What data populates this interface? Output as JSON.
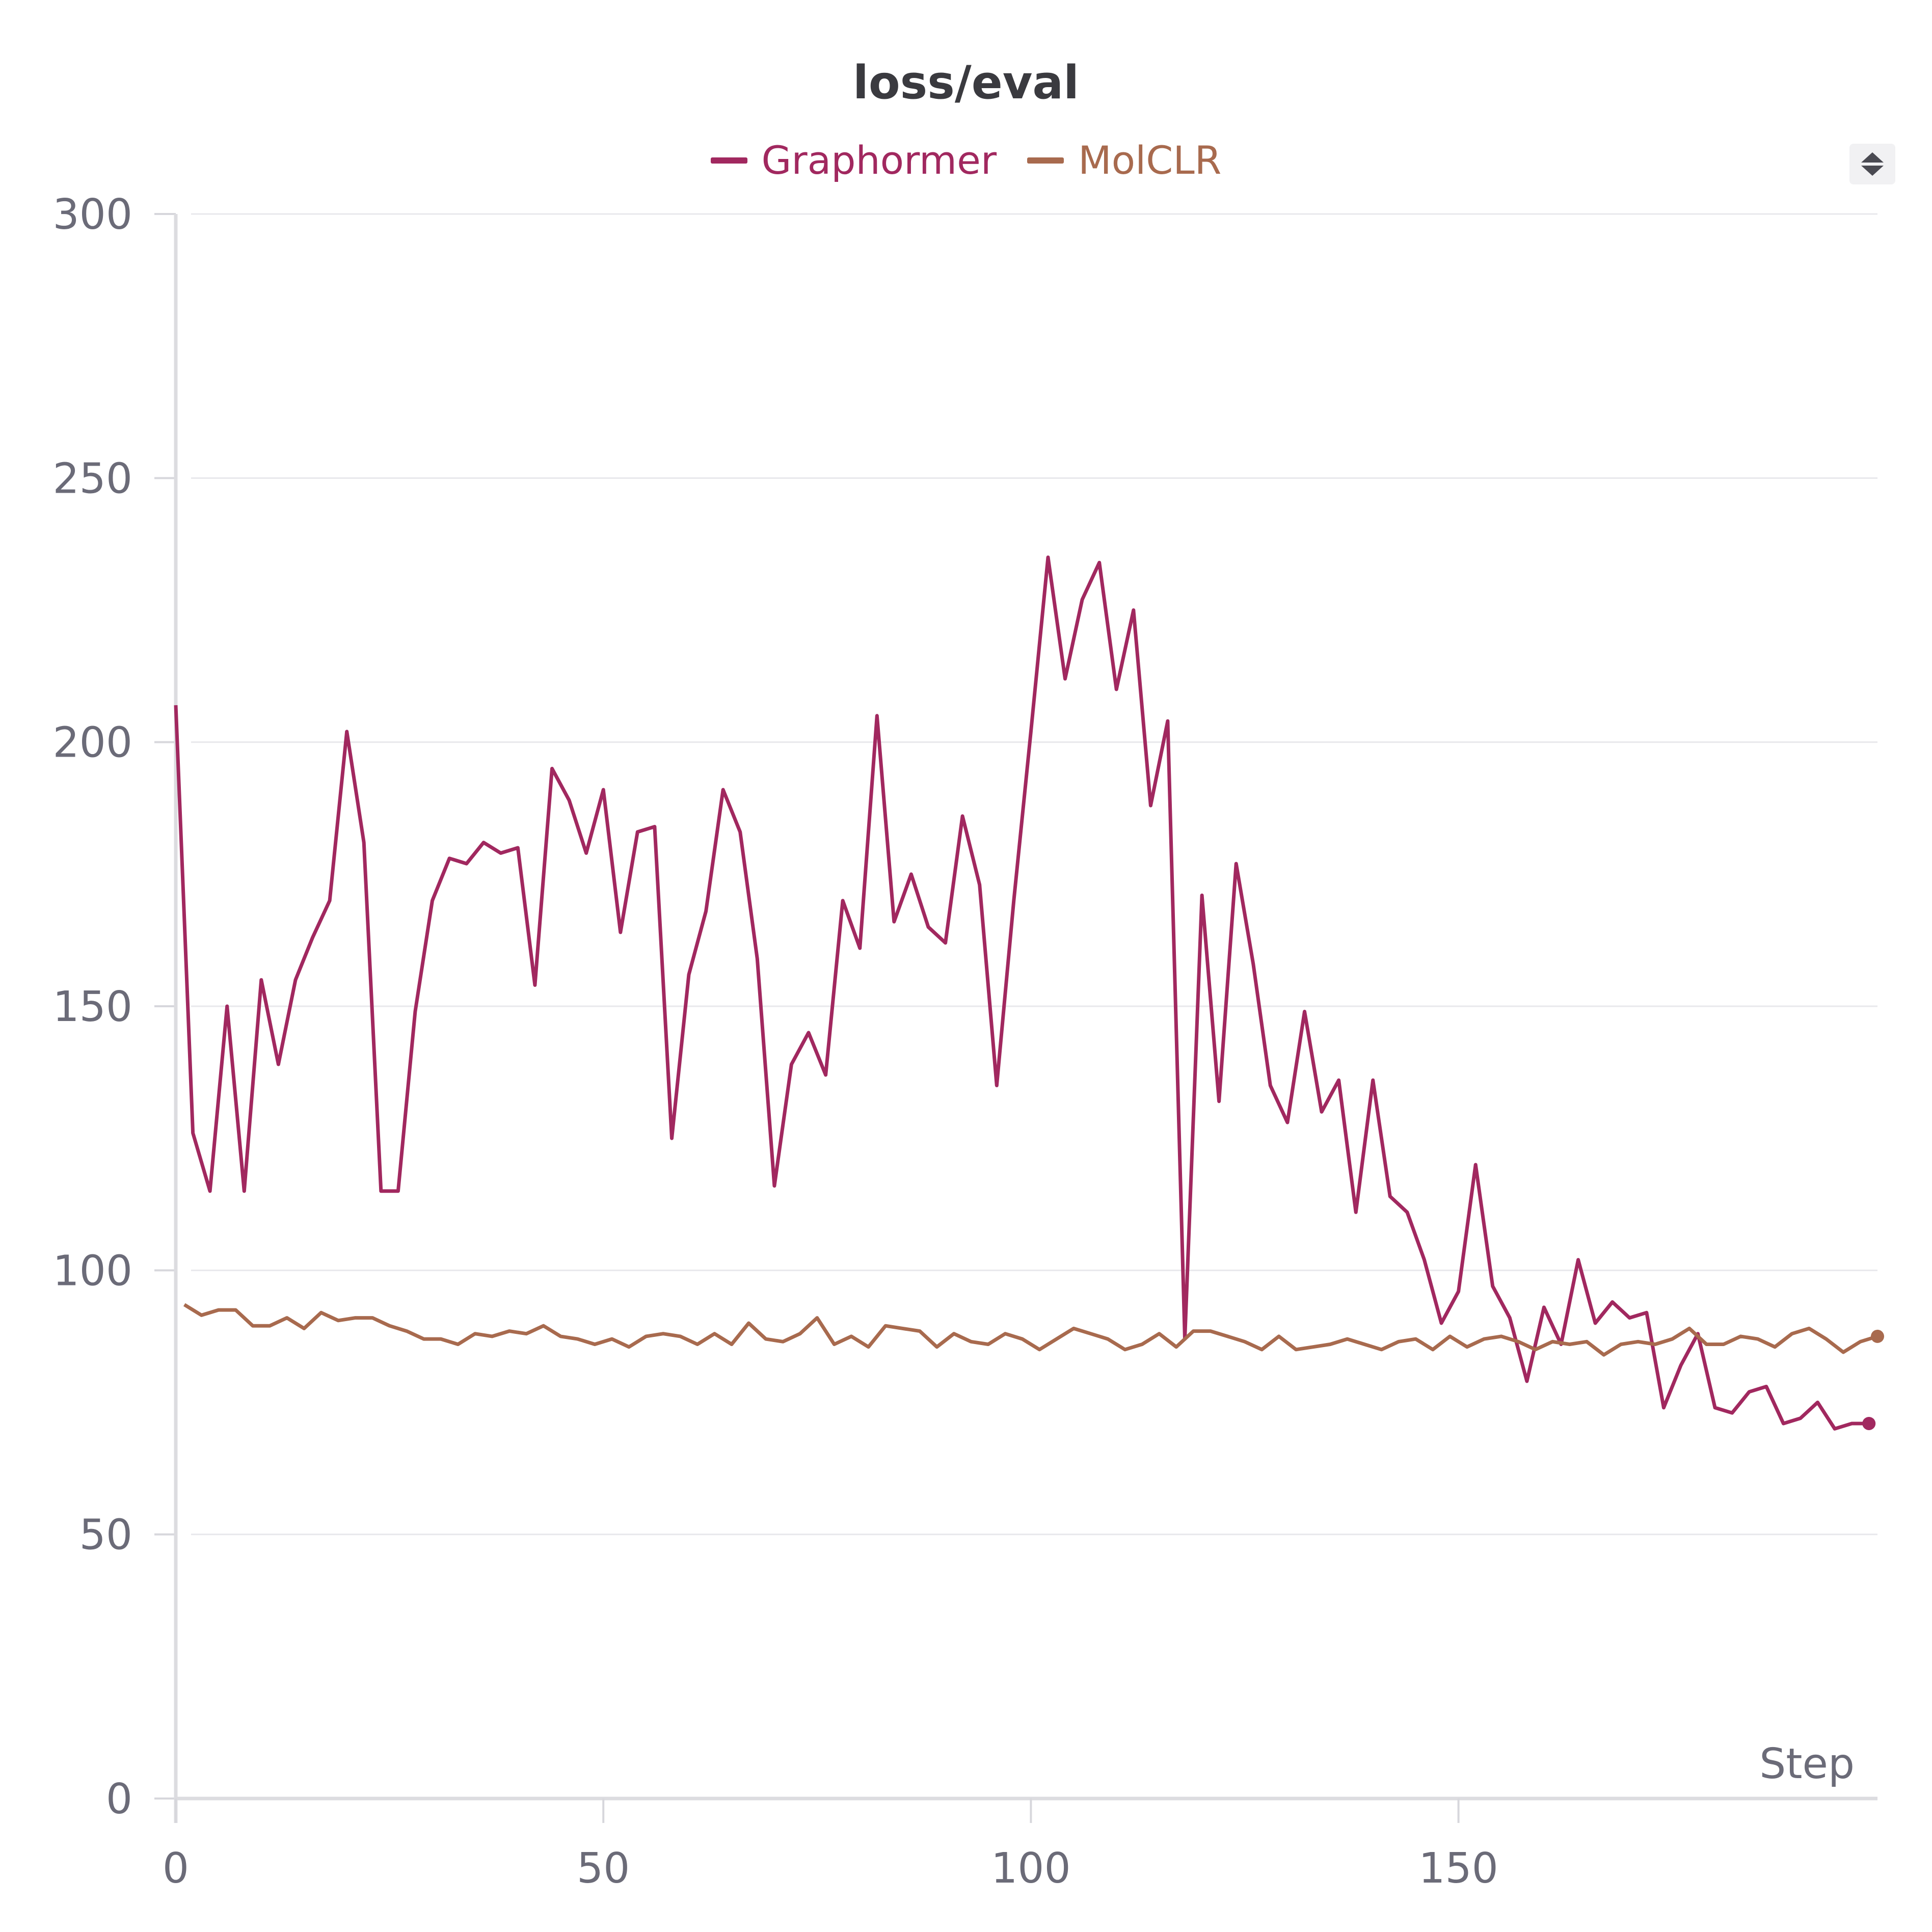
{
  "chart_data": {
    "type": "line",
    "title": "loss/eval",
    "xlabel": "Step",
    "ylabel": "",
    "xlim": [
      0,
      199
    ],
    "ylim": [
      0,
      300
    ],
    "xticks": [
      0,
      50,
      100,
      150
    ],
    "yticks": [
      0,
      50,
      100,
      150,
      200,
      250,
      300
    ],
    "grid": "horizontal",
    "legend": "top-center",
    "series": [
      {
        "name": "Graphormer",
        "color": "#a1285f",
        "x": [
          0,
          2,
          4,
          6,
          8,
          10,
          12,
          14,
          16,
          18,
          20,
          22,
          24,
          26,
          28,
          30,
          32,
          34,
          36,
          38,
          40,
          42,
          44,
          46,
          48,
          50,
          52,
          54,
          56,
          58,
          60,
          62,
          64,
          66,
          68,
          70,
          72,
          74,
          76,
          78,
          80,
          82,
          84,
          86,
          88,
          90,
          92,
          94,
          96,
          98,
          100,
          102,
          104,
          106,
          108,
          110,
          112,
          114,
          116,
          118,
          120,
          122,
          124,
          126,
          128,
          130,
          132,
          134,
          136,
          138,
          140,
          142,
          144,
          146,
          148,
          150,
          152,
          154,
          156,
          158,
          160,
          162,
          164,
          166,
          168,
          170,
          172,
          174,
          176,
          178,
          180,
          182,
          184,
          186,
          188,
          190,
          192,
          194,
          196,
          198
        ],
        "values": [
          207,
          126,
          115,
          150,
          115,
          155,
          139,
          155,
          163,
          170,
          202,
          181,
          115,
          115,
          149,
          170,
          178,
          177,
          181,
          179,
          180,
          154,
          195,
          189,
          179,
          191,
          164,
          183,
          184,
          125,
          156,
          168,
          191,
          183,
          159,
          116,
          139,
          145,
          137,
          170,
          161,
          205,
          166,
          175,
          165,
          162,
          186,
          173,
          135,
          170,
          202,
          235,
          212,
          227,
          234,
          210,
          225,
          188,
          204,
          87,
          171,
          132,
          177,
          158,
          135,
          128,
          149,
          130,
          136,
          111,
          136,
          114,
          111,
          102,
          90,
          96,
          120,
          97,
          91,
          79,
          93,
          86,
          102,
          90,
          94,
          91,
          92,
          74,
          82,
          88,
          74,
          73,
          77,
          78,
          71,
          72,
          75,
          70,
          71,
          71
        ]
      },
      {
        "name": "MolCLR",
        "color": "#a86a4e",
        "x": [
          1,
          3,
          5,
          7,
          9,
          11,
          13,
          15,
          17,
          19,
          21,
          23,
          25,
          27,
          29,
          31,
          33,
          35,
          37,
          39,
          41,
          43,
          45,
          47,
          49,
          51,
          53,
          55,
          57,
          59,
          61,
          63,
          65,
          67,
          69,
          71,
          73,
          75,
          77,
          79,
          81,
          83,
          85,
          87,
          89,
          91,
          93,
          95,
          97,
          99,
          101,
          103,
          105,
          107,
          109,
          111,
          113,
          115,
          117,
          119,
          121,
          123,
          125,
          127,
          129,
          131,
          133,
          135,
          137,
          139,
          141,
          143,
          145,
          147,
          149,
          151,
          153,
          155,
          157,
          159,
          161,
          163,
          165,
          167,
          169,
          171,
          173,
          175,
          177,
          179,
          181,
          183,
          185,
          187,
          189,
          191,
          193,
          195,
          197,
          199
        ],
        "values": [
          93.5,
          91.5,
          92.5,
          92.5,
          89.5,
          89.5,
          91,
          89,
          92,
          90.5,
          91,
          91,
          89.5,
          88.5,
          87,
          87,
          86,
          88,
          87.5,
          88.5,
          88,
          89.5,
          87.5,
          87,
          86,
          87,
          85.5,
          87.5,
          88,
          87.5,
          86,
          88,
          86,
          90,
          87,
          86.5,
          88,
          91,
          86,
          87.5,
          85.5,
          89.5,
          89,
          88.5,
          85.5,
          88,
          86.5,
          86,
          88,
          87,
          85,
          87,
          89,
          88,
          87,
          85,
          86,
          88,
          85.5,
          88.5,
          88.5,
          87.5,
          86.5,
          85,
          87.5,
          85,
          85.5,
          86,
          87,
          86,
          85,
          86.5,
          87,
          85,
          87.5,
          85.5,
          87,
          87.5,
          86.5,
          85,
          86.5,
          86,
          86.5,
          84,
          86,
          86.5,
          86,
          87,
          89,
          86,
          86,
          87.5,
          87,
          85.5,
          88,
          89,
          87,
          84.5,
          86.5,
          87.5
        ]
      }
    ]
  }
}
